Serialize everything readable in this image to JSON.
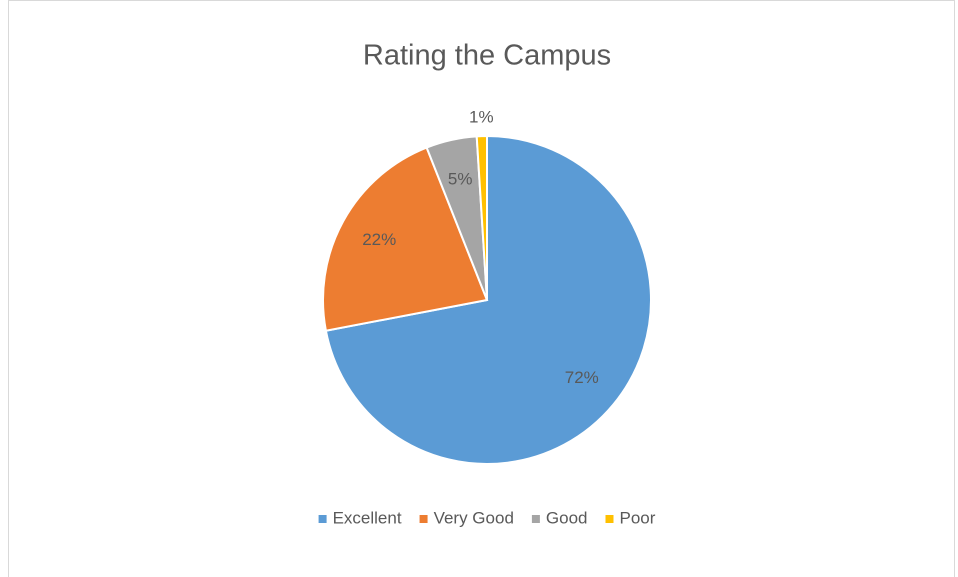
{
  "chart_data": {
    "type": "pie",
    "title": "Rating the Campus",
    "categories": [
      "Excellent",
      "Very Good",
      "Good",
      "Poor"
    ],
    "values": [
      72,
      22,
      5,
      1
    ],
    "value_labels": [
      "72%",
      "22%",
      "5%",
      "1%"
    ],
    "colors": [
      "#5b9bd5",
      "#ed7d31",
      "#a5a5a5",
      "#ffc000"
    ],
    "legend": "bottom"
  }
}
